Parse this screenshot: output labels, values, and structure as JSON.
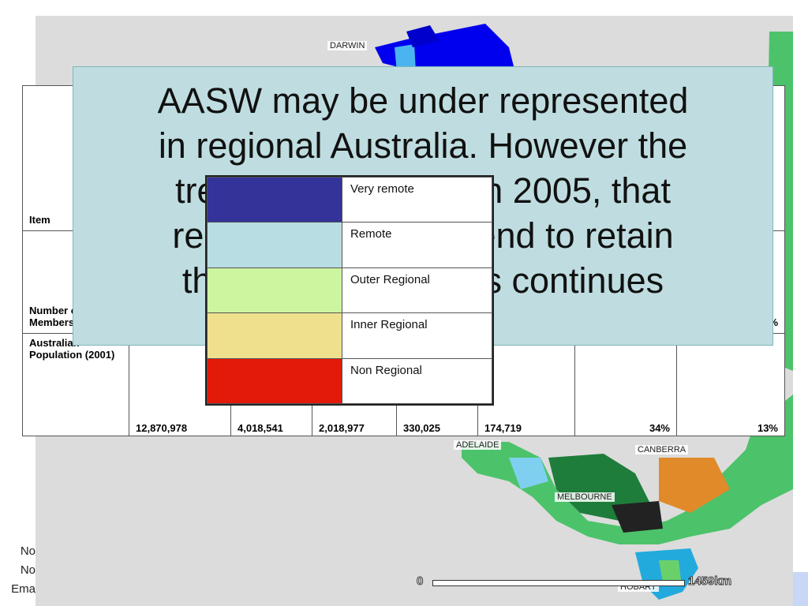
{
  "map": {
    "cities": [
      "DARWIN",
      "ADELAIDE",
      "CANBERRA",
      "MELBOURNE",
      "HOBART"
    ],
    "scale": {
      "start": "0",
      "end": "1459km"
    }
  },
  "overlay": {
    "lines": [
      "AASW may be under represented",
      "in regional Australia. However the",
      "trend, as identified in 2005, that",
      "regional members tend to retain",
      "their membership, is continues"
    ]
  },
  "legend": {
    "items": [
      {
        "label": "Very remote",
        "color": "#333399"
      },
      {
        "label": "Remote",
        "color": "#b8dde2"
      },
      {
        "label": "Outer Regional",
        "color": "#ccf5a0"
      },
      {
        "label": "Inner Regional",
        "color": "#efe08e"
      },
      {
        "label": "Non Regional",
        "color": "#e31a0a"
      }
    ]
  },
  "table": {
    "item_header": "Item",
    "rows": [
      {
        "label": "Number of AASW Members",
        "last_visible": "%"
      },
      {
        "label": "Australian Population (2001)",
        "values": [
          "12,870,978",
          "4,018,541",
          "2,018,977",
          "330,025",
          "174,719",
          "34%",
          "13%"
        ]
      }
    ]
  },
  "left_notes": [
    "No",
    "No",
    "Ema"
  ]
}
